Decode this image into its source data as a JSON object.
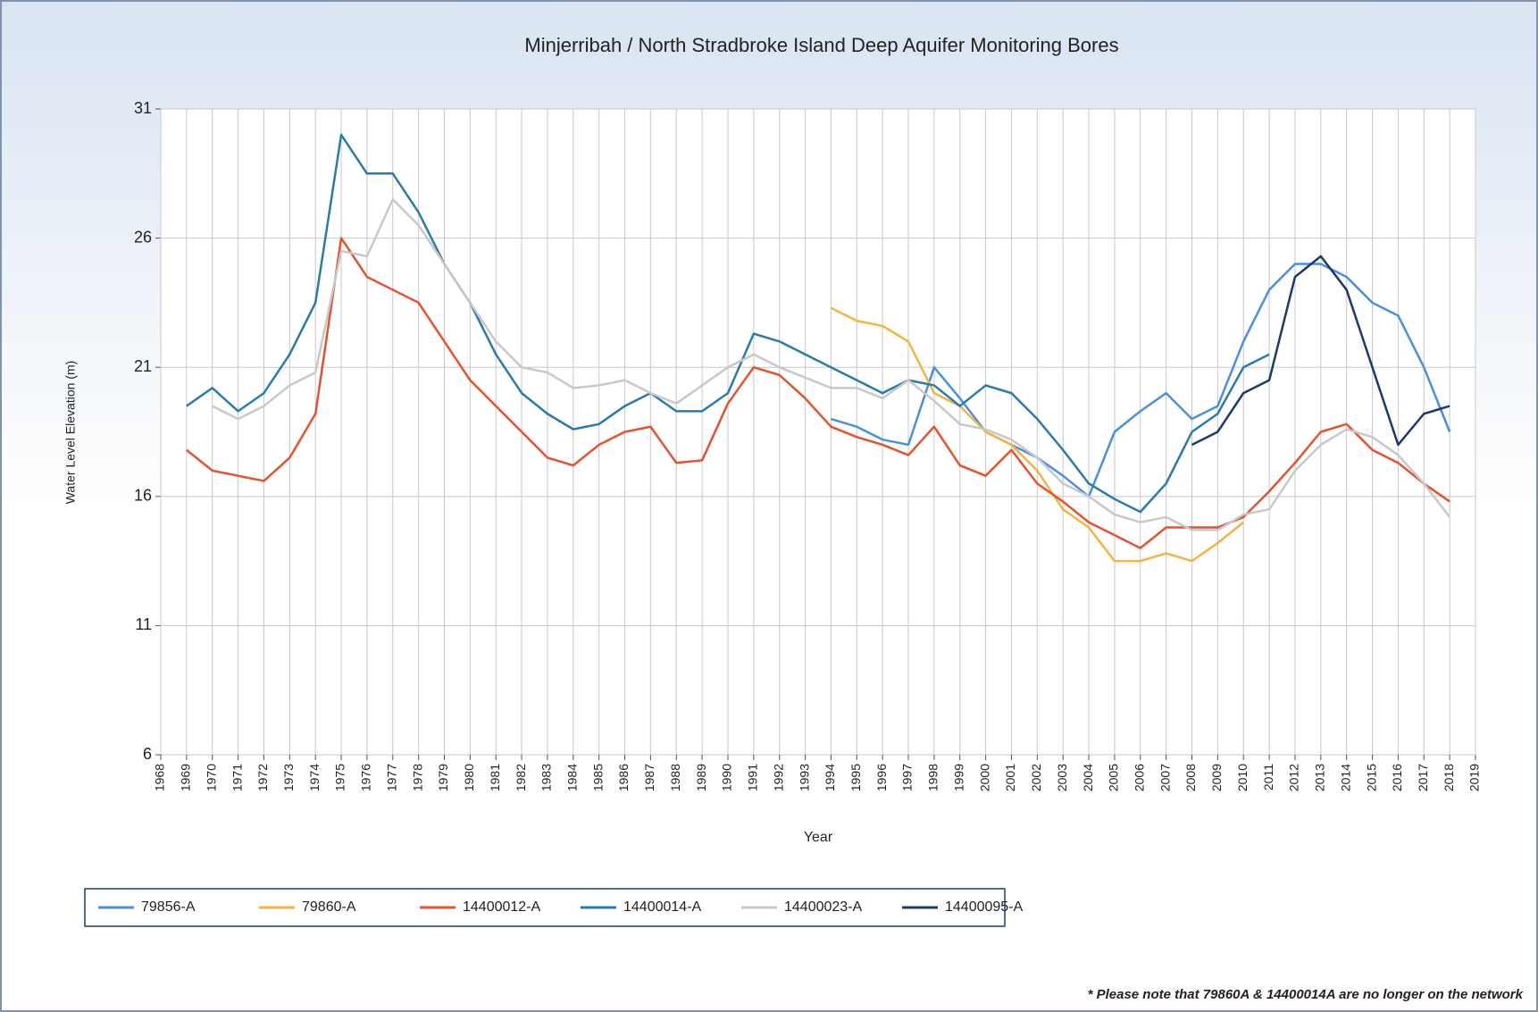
{
  "chart_data": {
    "type": "line",
    "title": "Minjerribah / North Stradbroke Island Deep Aquifer Monitoring Bores",
    "x_label": "Year",
    "y_label": "Water Level Elevation (m)",
    "note": "* Please note that 79860A & 14400014A are no longer on the network",
    "x": [
      1969,
      1970,
      1971,
      1972,
      1973,
      1974,
      1975,
      1976,
      1977,
      1978,
      1979,
      1980,
      1981,
      1982,
      1983,
      1984,
      1985,
      1986,
      1987,
      1988,
      1989,
      1990,
      1991,
      1992,
      1993,
      1994,
      1995,
      1996,
      1997,
      1998,
      1999,
      2000,
      2001,
      2002,
      2003,
      2004,
      2005,
      2006,
      2007,
      2008,
      2009,
      2010,
      2011,
      2012,
      2013,
      2014,
      2015,
      2016,
      2017,
      2018
    ],
    "xlim": [
      1968,
      2019
    ],
    "xticks": [
      1968,
      1969,
      1970,
      1971,
      1972,
      1973,
      1974,
      1975,
      1976,
      1977,
      1978,
      1979,
      1980,
      1981,
      1982,
      1983,
      1984,
      1985,
      1986,
      1987,
      1988,
      1989,
      1990,
      1991,
      1992,
      1993,
      1994,
      1995,
      1996,
      1997,
      1998,
      1999,
      2000,
      2001,
      2002,
      2003,
      2004,
      2005,
      2006,
      2007,
      2008,
      2009,
      2010,
      2011,
      2012,
      2013,
      2014,
      2015,
      2016,
      2017,
      2018,
      2019
    ],
    "ylim": [
      6,
      31
    ],
    "yticks": [
      6,
      11,
      16,
      21,
      26,
      31
    ],
    "grid": true,
    "series": [
      {
        "name": "79856-A",
        "color": "#4a8fe0",
        "values": [
          null,
          null,
          null,
          null,
          null,
          null,
          null,
          null,
          null,
          null,
          null,
          null,
          null,
          null,
          null,
          null,
          null,
          null,
          null,
          null,
          null,
          null,
          null,
          null,
          null,
          19,
          18.7,
          18.2,
          18,
          21,
          19.8,
          18.5,
          18,
          17.5,
          16.8,
          16,
          18.5,
          19.3,
          20,
          19,
          19.5,
          22,
          24,
          25,
          25,
          24.5,
          23.5,
          23,
          21,
          18.5
        ]
      },
      {
        "name": "79860-A",
        "color": "#f5b342",
        "values": [
          null,
          null,
          null,
          null,
          null,
          null,
          null,
          null,
          null,
          null,
          null,
          null,
          null,
          null,
          null,
          null,
          null,
          null,
          null,
          null,
          null,
          null,
          null,
          null,
          null,
          23.3,
          22.8,
          22.6,
          22,
          20,
          19.5,
          18.5,
          18,
          17,
          15.5,
          14.8,
          13.5,
          13.5,
          13.8,
          13.5,
          14.2,
          15,
          null,
          null,
          null,
          null,
          null,
          null,
          null,
          null
        ]
      },
      {
        "name": "14400012-A",
        "color": "#e2532e",
        "values": [
          17.8,
          17,
          16.8,
          16.6,
          17.5,
          19.2,
          26,
          24.5,
          24,
          23.5,
          22,
          20.5,
          19.5,
          18.5,
          17.5,
          17.2,
          18,
          18.5,
          18.7,
          17.3,
          17.4,
          19.6,
          21,
          20.7,
          19.8,
          18.7,
          18.3,
          18,
          17.6,
          18.7,
          17.2,
          16.8,
          17.8,
          16.5,
          15.8,
          15,
          14.5,
          14,
          14.8,
          14.8,
          14.8,
          15.2,
          16.2,
          17.3,
          18.5,
          18.8,
          17.8,
          17.3,
          16.5,
          15.8
        ]
      },
      {
        "name": "14400014-A",
        "color": "#2a7bad",
        "values": [
          19.5,
          20.2,
          19.3,
          20,
          21.5,
          23.5,
          30,
          28.5,
          28.5,
          27,
          25,
          23.5,
          21.5,
          20,
          19.2,
          18.6,
          18.8,
          19.5,
          20,
          19.3,
          19.3,
          20,
          22.3,
          22,
          21.5,
          21,
          20.5,
          20,
          20.5,
          20.3,
          19.5,
          20.3,
          20,
          19,
          17.8,
          16.5,
          15.9,
          15.4,
          16.5,
          18.5,
          19.2,
          21,
          21.5,
          null,
          null,
          null,
          null,
          null,
          null,
          null
        ]
      },
      {
        "name": "14400023-A",
        "color": "#c8c8c8",
        "values": [
          null,
          19.5,
          19,
          19.5,
          20.3,
          20.8,
          25.5,
          25.3,
          27.5,
          26.5,
          25,
          23.5,
          22,
          21,
          20.8,
          20.2,
          20.3,
          20.5,
          20,
          19.6,
          20.3,
          21,
          21.5,
          21,
          20.6,
          20.2,
          20.2,
          19.8,
          20.5,
          19.7,
          18.8,
          18.6,
          18.2,
          17.5,
          16.5,
          16,
          15.3,
          15,
          15.2,
          14.7,
          14.7,
          15.3,
          15.5,
          17,
          18,
          18.6,
          18.3,
          17.6,
          16.5,
          15.2
        ]
      },
      {
        "name": "14400095-A",
        "color": "#1c3a6b",
        "values": [
          null,
          null,
          null,
          null,
          null,
          null,
          null,
          null,
          null,
          null,
          null,
          null,
          null,
          null,
          null,
          null,
          null,
          null,
          null,
          null,
          null,
          null,
          null,
          null,
          null,
          null,
          null,
          null,
          null,
          null,
          null,
          null,
          null,
          null,
          null,
          null,
          null,
          null,
          null,
          18,
          18.5,
          20,
          20.5,
          24.5,
          25.3,
          24,
          21,
          18,
          19.2,
          19.5
        ]
      }
    ]
  }
}
